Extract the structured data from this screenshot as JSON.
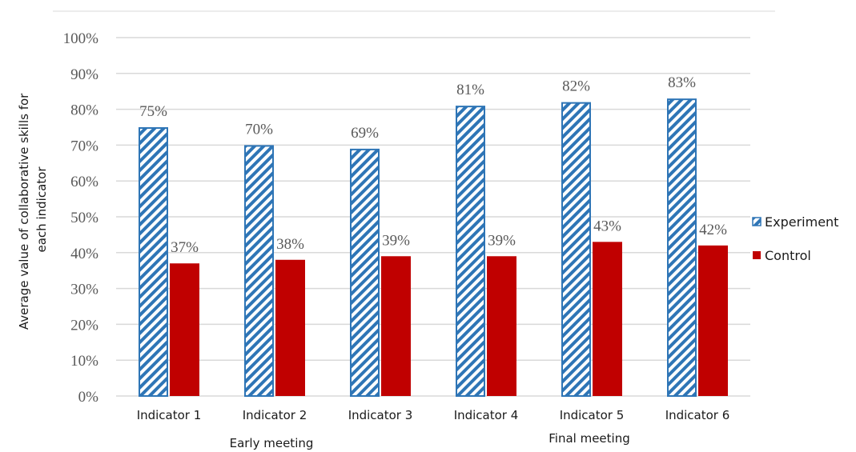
{
  "chart_data": {
    "type": "bar",
    "categories": [
      "Indicator 1",
      "Indicator 2",
      "Indicator 3",
      "Indicator 4",
      "Indicator 5",
      "Indicator 6"
    ],
    "category_groups": [
      {
        "label": "Early meeting",
        "categories": [
          "Indicator 1",
          "Indicator 2",
          "Indicator 3"
        ]
      },
      {
        "label": "Final meeting",
        "categories": [
          "Indicator 4",
          "Indicator 5",
          "Indicator 6"
        ]
      }
    ],
    "series": [
      {
        "name": "Experiment",
        "values": [
          75,
          70,
          69,
          81,
          82,
          83
        ],
        "labels": [
          "75%",
          "70%",
          "69%",
          "81%",
          "82%",
          "83%"
        ],
        "color": "#2e75b6",
        "pattern": "diagonal-hatch"
      },
      {
        "name": "Control",
        "values": [
          37,
          38,
          39,
          39,
          43,
          42
        ],
        "labels": [
          "37%",
          "38%",
          "39%",
          "39%",
          "43%",
          "42%"
        ],
        "color": "#c00000",
        "pattern": "solid"
      }
    ],
    "title": "",
    "xlabel": "",
    "ylabel_lines": [
      "Average value of collaborative skills for",
      "each indicator"
    ],
    "ylim": [
      0,
      100
    ],
    "yticks": [
      0,
      10,
      20,
      30,
      40,
      50,
      60,
      70,
      80,
      90,
      100
    ],
    "ytick_labels": [
      "0%",
      "10%",
      "20%",
      "30%",
      "40%",
      "50%",
      "60%",
      "70%",
      "80%",
      "90%",
      "100%"
    ],
    "grid": true,
    "legend_position": "right"
  }
}
